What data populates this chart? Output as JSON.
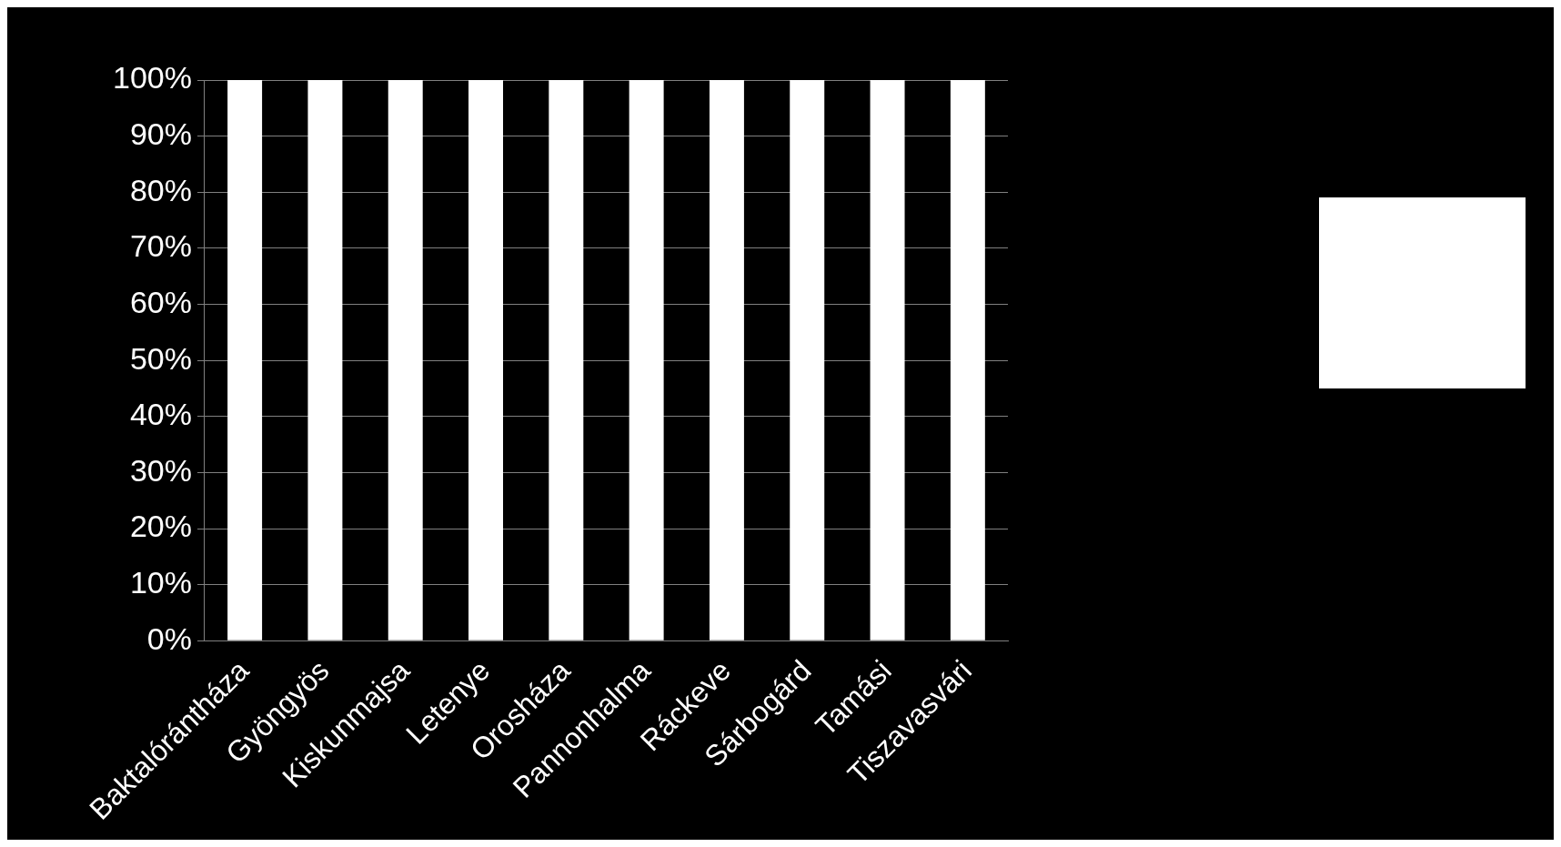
{
  "chart_data": {
    "type": "bar",
    "categories": [
      "Baktalórántháza",
      "Gyöngyös",
      "Kiskunmajsa",
      "Letenye",
      "Orosháza",
      "Pannonhalma",
      "Ráckeve",
      "Sárbogárd",
      "Tamási",
      "Tiszavasvári"
    ],
    "series": [
      {
        "color": "#ffffff",
        "values": [
          100,
          100,
          100,
          100,
          100,
          100,
          100,
          100,
          100,
          100
        ]
      }
    ],
    "ylim": [
      0,
      100
    ],
    "yticks": [
      {
        "value": 0,
        "label": "0%"
      },
      {
        "value": 10,
        "label": "10%"
      },
      {
        "value": 20,
        "label": "20%"
      },
      {
        "value": 30,
        "label": "30%"
      },
      {
        "value": 40,
        "label": "40%"
      },
      {
        "value": 50,
        "label": "50%"
      },
      {
        "value": 60,
        "label": "60%"
      },
      {
        "value": 70,
        "label": "70%"
      },
      {
        "value": 80,
        "label": "80%"
      },
      {
        "value": 90,
        "label": "90%"
      },
      {
        "value": 100,
        "label": "100%"
      }
    ],
    "grid": "y"
  }
}
